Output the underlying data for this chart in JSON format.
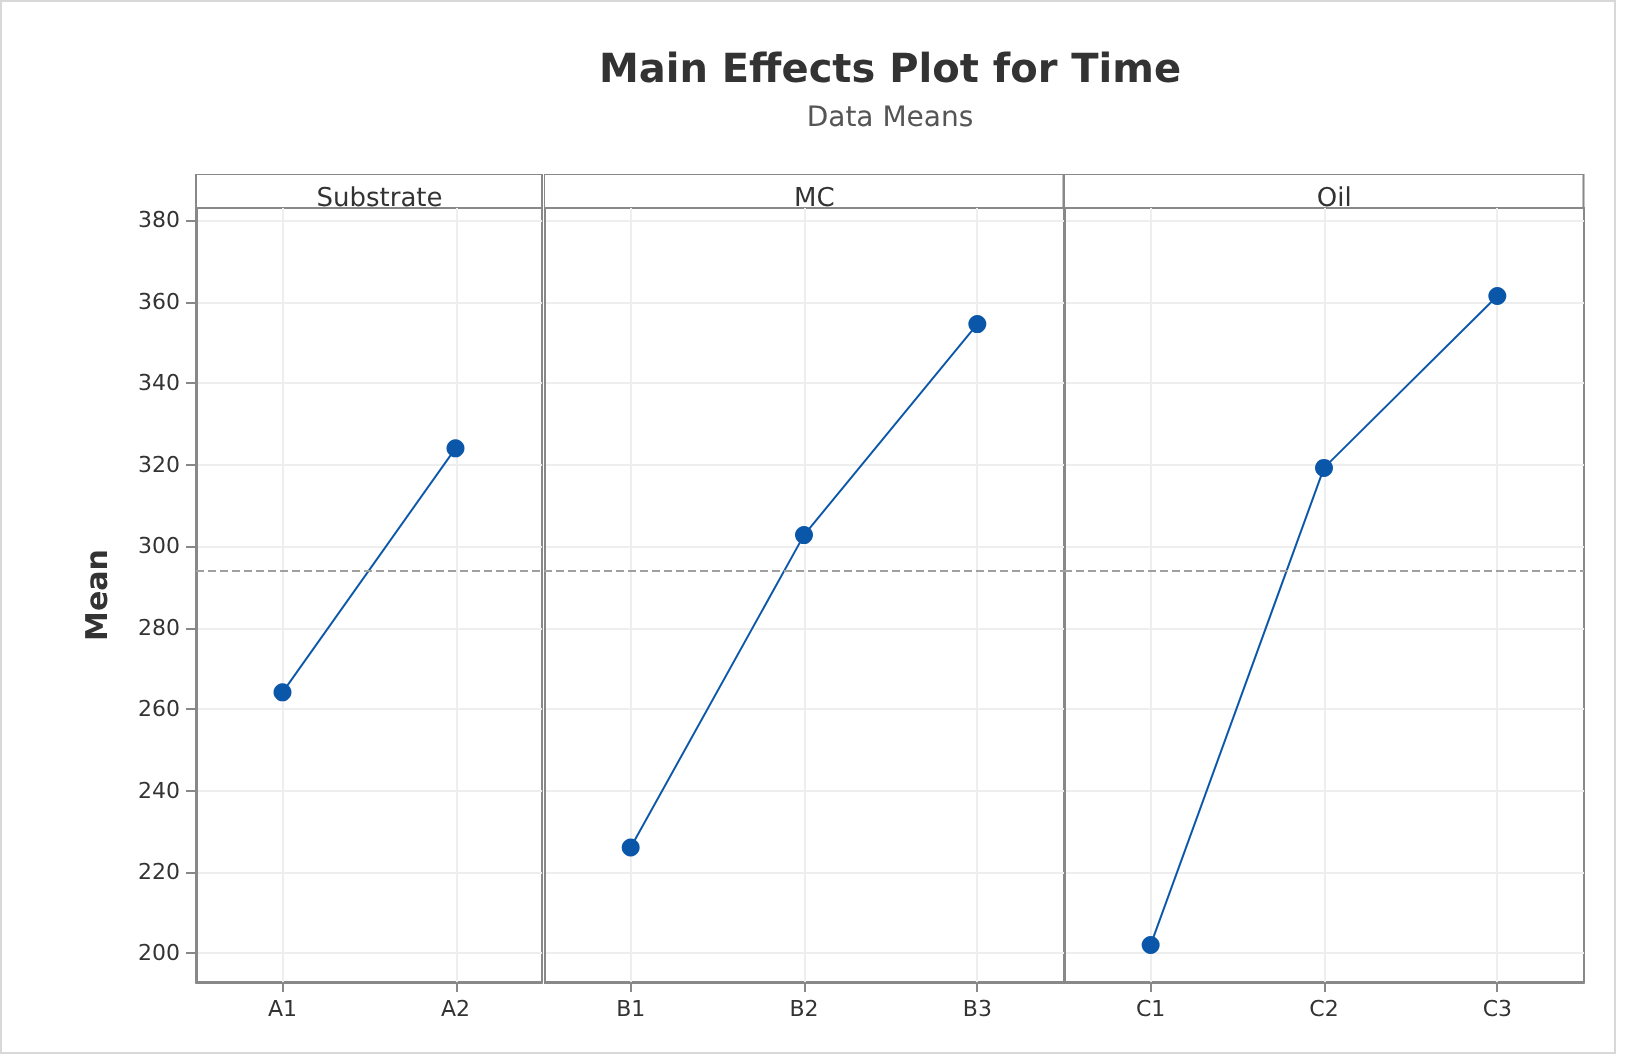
{
  "chart_data": [
    {
      "type": "line",
      "xlabel": "Substrate",
      "ylabel": "Mean",
      "categories": [
        "A1",
        "A2"
      ],
      "values": [
        264.1,
        324.0
      ],
      "color": "#0a56a8",
      "marker": "circle",
      "ylim": [
        193,
        383
      ],
      "yticks": [
        200,
        220,
        240,
        260,
        280,
        300,
        320,
        340,
        360,
        380
      ],
      "grid": true,
      "ref_lines": [
        {
          "axis": "y",
          "value": 294.0,
          "color": "#a0a0a0",
          "line_style": "dashed"
        }
      ]
    },
    {
      "type": "line",
      "title": "Main Effects Plot for Time",
      "subtitle": "Data Means",
      "xlabel": "MC",
      "categories": [
        "B1",
        "B2",
        "B3"
      ],
      "values": [
        226.0,
        302.7,
        354.5
      ],
      "color": "#0a56a8",
      "marker": "circle",
      "ylim": [
        193,
        383
      ],
      "yticks": [
        200,
        220,
        240,
        260,
        280,
        300,
        320,
        340,
        360,
        380
      ],
      "grid": true,
      "tick_labels": "x",
      "ref_lines": [
        {
          "axis": "y",
          "value": 294.0,
          "color": "#a0a0a0",
          "line_style": "dashed"
        }
      ]
    },
    {
      "type": "line",
      "xlabel": "Oil",
      "categories": [
        "C1",
        "C2",
        "C3"
      ],
      "values": [
        202.1,
        319.2,
        361.4
      ],
      "color": "#0a56a8",
      "marker": "circle",
      "ylim": [
        193,
        383
      ],
      "yticks": [
        200,
        220,
        240,
        260,
        280,
        300,
        320,
        340,
        360,
        380
      ],
      "grid": true,
      "tick_labels": "x",
      "ref_lines": [
        {
          "axis": "y",
          "value": 294.0,
          "color": "#a0a0a0",
          "line_style": "dashed"
        }
      ]
    }
  ]
}
